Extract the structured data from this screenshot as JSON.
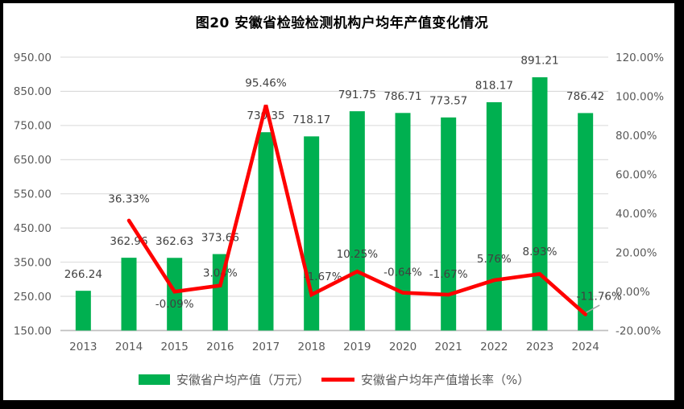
{
  "title": "图20 安徽省检验检测机构户均年产值变化情况",
  "legend": {
    "bar": "安徽省户均产值（万元）",
    "line": "安徽省户均年产值增长率（%）"
  },
  "chart_data": {
    "type": "combo-bar-line",
    "title": "图20 安徽省检验检测机构户均年产值变化情况",
    "categories": [
      "2013",
      "2014",
      "2015",
      "2016",
      "2017",
      "2018",
      "2019",
      "2020",
      "2021",
      "2022",
      "2023",
      "2024"
    ],
    "series": [
      {
        "name": "安徽省户均产值（万元）",
        "type": "bar",
        "axis": "left",
        "values": [
          266.24,
          362.96,
          362.63,
          373.66,
          730.35,
          718.17,
          791.75,
          786.71,
          773.57,
          818.17,
          891.21,
          786.42
        ],
        "labels": [
          "266.24",
          "362.96",
          "362.63",
          "373.66",
          "730.35",
          "718.17",
          "791.75",
          "786.71",
          "773.57",
          "818.17",
          "891.21",
          "786.42"
        ]
      },
      {
        "name": "安徽省户均年产值增长率（%）",
        "type": "line",
        "axis": "right",
        "values": [
          null,
          36.33,
          -0.09,
          3.04,
          95.46,
          -1.67,
          10.25,
          -0.64,
          -1.67,
          5.76,
          8.93,
          -11.76
        ],
        "labels": [
          null,
          "36.33%",
          "-0.09%",
          "3.04%",
          "95.46%",
          "-1.67%",
          "10.25%",
          "-0.64%",
          "-1.67%",
          "5.76%",
          "8.93%",
          "-11.76%"
        ]
      }
    ],
    "left_axis": {
      "min": 150,
      "max": 950,
      "step": 100,
      "tick_labels": [
        "950.00",
        "850.00",
        "750.00",
        "650.00",
        "550.00",
        "450.00",
        "350.00",
        "250.00",
        "150.00"
      ]
    },
    "right_axis": {
      "min": -20,
      "max": 120,
      "step": 20,
      "tick_labels": [
        "120.00%",
        "100.00%",
        "80.00%",
        "60.00%",
        "40.00%",
        "20.00%",
        "0.00%",
        "-20.00%"
      ]
    },
    "grid": true,
    "legend_position": "bottom",
    "colors": {
      "bar": "#00B050",
      "line": "#FF0000",
      "grid": "#D9D9D9",
      "axis_line": "#BFBFBF",
      "tick_text": "#595959",
      "label_text": "#404040",
      "title_text": "#000000",
      "leader": "#A6A6A6",
      "frame": "#000000"
    }
  }
}
